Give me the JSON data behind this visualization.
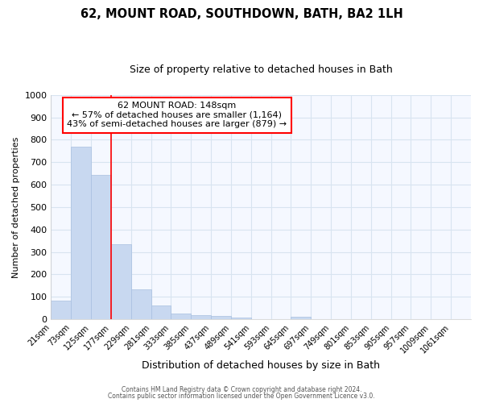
{
  "title1": "62, MOUNT ROAD, SOUTHDOWN, BATH, BA2 1LH",
  "title2": "Size of property relative to detached houses in Bath",
  "xlabel": "Distribution of detached houses by size in Bath",
  "ylabel": "Number of detached properties",
  "bin_labels": [
    "21sqm",
    "73sqm",
    "125sqm",
    "177sqm",
    "229sqm",
    "281sqm",
    "333sqm",
    "385sqm",
    "437sqm",
    "489sqm",
    "541sqm",
    "593sqm",
    "645sqm",
    "697sqm",
    "749sqm",
    "801sqm",
    "853sqm",
    "905sqm",
    "957sqm",
    "1009sqm",
    "1061sqm"
  ],
  "bar_values": [
    83,
    770,
    645,
    335,
    133,
    60,
    25,
    18,
    15,
    7,
    0,
    0,
    12,
    0,
    0,
    0,
    0,
    0,
    0,
    0,
    0
  ],
  "bar_color": "#c8d8f0",
  "bar_edge_color": "#a8c0e0",
  "annotation_text": "62 MOUNT ROAD: 148sqm\n← 57% of detached houses are smaller (1,164)\n43% of semi-detached houses are larger (879) →",
  "annotation_box_color": "white",
  "annotation_box_edge": "red",
  "red_line_color": "red",
  "ylim": [
    0,
    1000
  ],
  "yticks": [
    0,
    100,
    200,
    300,
    400,
    500,
    600,
    700,
    800,
    900,
    1000
  ],
  "footer1": "Contains HM Land Registry data © Crown copyright and database right 2024.",
  "footer2": "Contains public sector information licensed under the Open Government Licence v3.0.",
  "bg_color": "#ffffff",
  "plot_bg_color": "#f5f8ff",
  "grid_color": "#d8e4f0",
  "title1_fontsize": 10.5,
  "title2_fontsize": 9,
  "red_line_bin": 3
}
